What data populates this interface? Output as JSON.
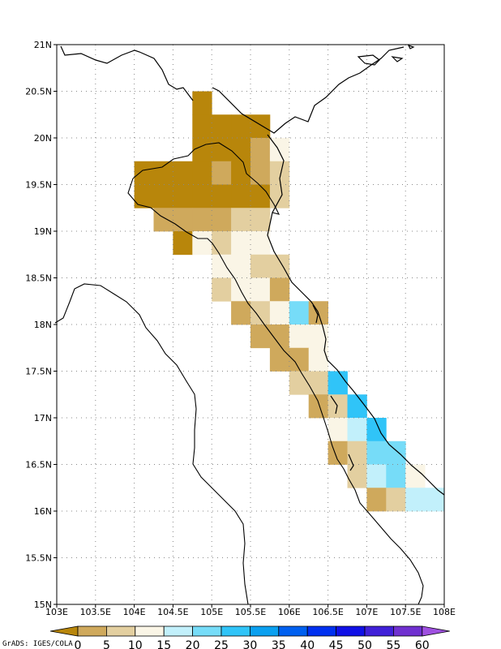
{
  "credit": "GrADS: IGES/COLA",
  "map": {
    "lon_range": [
      103,
      108
    ],
    "lat_range": [
      15,
      21
    ],
    "x_ticks": [
      {
        "v": 103,
        "label": "103E"
      },
      {
        "v": 103.5,
        "label": "103.5E"
      },
      {
        "v": 104,
        "label": "104E"
      },
      {
        "v": 104.5,
        "label": "104.5E"
      },
      {
        "v": 105,
        "label": "105E"
      },
      {
        "v": 105.5,
        "label": "105.5E"
      },
      {
        "v": 106,
        "label": "106E"
      },
      {
        "v": 106.5,
        "label": "106.5E"
      },
      {
        "v": 107,
        "label": "107E"
      },
      {
        "v": 107.5,
        "label": "107.5E"
      },
      {
        "v": 108,
        "label": "108E"
      }
    ],
    "y_ticks": [
      {
        "v": 21,
        "label": "21N"
      },
      {
        "v": 20.5,
        "label": "20.5N"
      },
      {
        "v": 20,
        "label": "20N"
      },
      {
        "v": 19.5,
        "label": "19.5N"
      },
      {
        "v": 19,
        "label": "19N"
      },
      {
        "v": 18.5,
        "label": "18.5N"
      },
      {
        "v": 18,
        "label": "18N"
      },
      {
        "v": 17.5,
        "label": "17.5N"
      },
      {
        "v": 17,
        "label": "17N"
      },
      {
        "v": 16.5,
        "label": "16.5N"
      },
      {
        "v": 16,
        "label": "16N"
      },
      {
        "v": 15.5,
        "label": "15.5N"
      },
      {
        "v": 15,
        "label": "15N"
      }
    ],
    "grid": true,
    "cell_size_deg": 0.25
  },
  "colorbar": {
    "levels": [
      "0",
      "5",
      "10",
      "15",
      "20",
      "25",
      "30",
      "35",
      "40",
      "45",
      "50",
      "55",
      "60"
    ],
    "colors": [
      "#b8860b",
      "#cfa95c",
      "#e3cfa0",
      "#faf5e6",
      "#c2f0fb",
      "#76dcf8",
      "#30c4f8",
      "#0aa0f0",
      "#0060f0",
      "#0030f0",
      "#1010e6",
      "#4020d8",
      "#7030d0",
      "#9f50e0"
    ]
  },
  "chart_data": {
    "type": "heatmap",
    "cell_size_deg": 0.25,
    "note_units": "grid cells given as [lon_west, lat_south, color_class]",
    "cells": [
      [
        104.75,
        20.25,
        0
      ],
      [
        104.75,
        20.0,
        0
      ],
      [
        105.0,
        20.0,
        0
      ],
      [
        105.25,
        20.0,
        0
      ],
      [
        105.5,
        20.0,
        0
      ],
      [
        104.75,
        19.75,
        0
      ],
      [
        105.0,
        19.75,
        0
      ],
      [
        105.25,
        19.75,
        0
      ],
      [
        105.5,
        19.75,
        1
      ],
      [
        105.75,
        19.75,
        3
      ],
      [
        104.0,
        19.5,
        0
      ],
      [
        104.25,
        19.5,
        0
      ],
      [
        104.5,
        19.5,
        0
      ],
      [
        104.75,
        19.5,
        0
      ],
      [
        105.0,
        19.5,
        1
      ],
      [
        105.25,
        19.5,
        0
      ],
      [
        105.5,
        19.5,
        1
      ],
      [
        105.75,
        19.5,
        2
      ],
      [
        104.0,
        19.25,
        0
      ],
      [
        104.25,
        19.25,
        0
      ],
      [
        104.5,
        19.25,
        0
      ],
      [
        104.75,
        19.25,
        0
      ],
      [
        105.0,
        19.25,
        0
      ],
      [
        105.25,
        19.25,
        0
      ],
      [
        105.5,
        19.25,
        0
      ],
      [
        105.75,
        19.25,
        2
      ],
      [
        104.25,
        19.0,
        1
      ],
      [
        104.5,
        19.0,
        1
      ],
      [
        104.75,
        19.0,
        1
      ],
      [
        105.0,
        19.0,
        1
      ],
      [
        105.25,
        19.0,
        2
      ],
      [
        105.5,
        19.0,
        2
      ],
      [
        104.5,
        18.75,
        0
      ],
      [
        104.75,
        18.75,
        3
      ],
      [
        105.0,
        18.75,
        2
      ],
      [
        105.25,
        18.75,
        3
      ],
      [
        105.5,
        18.75,
        3
      ],
      [
        105.0,
        18.5,
        3
      ],
      [
        105.25,
        18.5,
        3
      ],
      [
        105.5,
        18.5,
        2
      ],
      [
        105.75,
        18.5,
        2
      ],
      [
        105.0,
        18.25,
        2
      ],
      [
        105.25,
        18.25,
        3
      ],
      [
        105.5,
        18.25,
        3
      ],
      [
        105.75,
        18.25,
        1
      ],
      [
        105.25,
        18.0,
        1
      ],
      [
        105.5,
        18.0,
        2
      ],
      [
        105.75,
        18.0,
        3
      ],
      [
        106.0,
        18.0,
        5
      ],
      [
        106.25,
        18.0,
        1
      ],
      [
        105.5,
        17.75,
        1
      ],
      [
        105.75,
        17.75,
        1
      ],
      [
        106.0,
        17.75,
        3
      ],
      [
        106.25,
        17.75,
        3
      ],
      [
        105.75,
        17.5,
        1
      ],
      [
        106.0,
        17.5,
        1
      ],
      [
        106.25,
        17.5,
        3
      ],
      [
        106.0,
        17.25,
        2
      ],
      [
        106.25,
        17.25,
        2
      ],
      [
        106.5,
        17.25,
        6
      ],
      [
        106.25,
        17.0,
        1
      ],
      [
        106.5,
        17.0,
        2
      ],
      [
        106.75,
        17.0,
        6
      ],
      [
        106.5,
        16.75,
        3
      ],
      [
        106.75,
        16.75,
        4
      ],
      [
        107.0,
        16.75,
        6
      ],
      [
        106.5,
        16.5,
        1
      ],
      [
        106.75,
        16.5,
        2
      ],
      [
        107.0,
        16.5,
        5
      ],
      [
        107.25,
        16.5,
        5
      ],
      [
        106.75,
        16.25,
        2
      ],
      [
        107.0,
        16.25,
        4
      ],
      [
        107.25,
        16.25,
        5
      ],
      [
        107.5,
        16.25,
        3
      ],
      [
        107.0,
        16.0,
        1
      ],
      [
        107.25,
        16.0,
        2
      ],
      [
        107.5,
        16.0,
        4
      ],
      [
        107.75,
        16.0,
        4
      ]
    ]
  }
}
